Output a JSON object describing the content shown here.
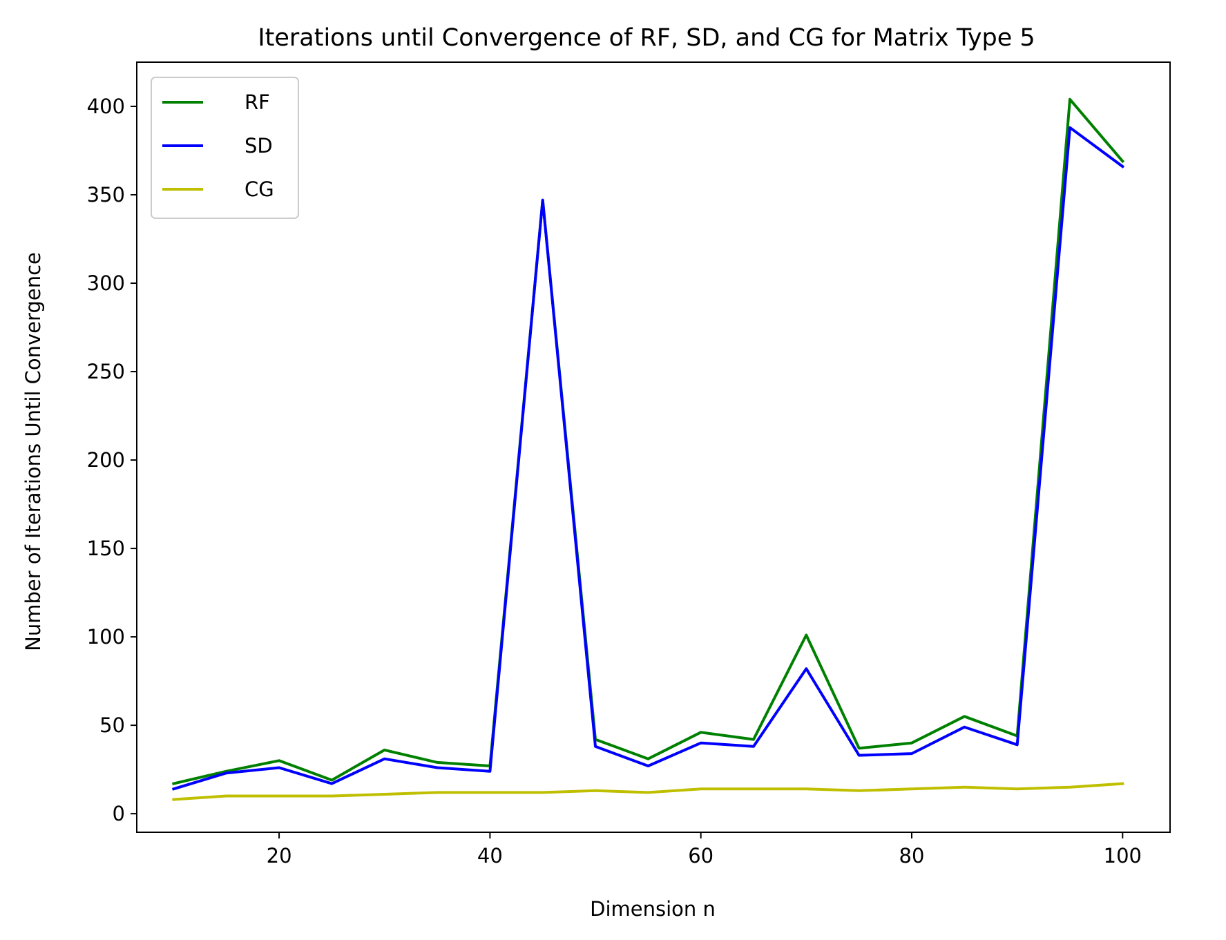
{
  "chart_data": {
    "type": "line",
    "title": "Iterations until Convergence of RF, SD, and CG for Matrix Type 5",
    "xlabel": "Dimension n",
    "ylabel": "Number of Iterations Until Convergence",
    "xlim": [
      6.5,
      104.5
    ],
    "ylim": [
      -10.5,
      425
    ],
    "xticks": [
      20,
      40,
      60,
      80,
      100
    ],
    "yticks": [
      0,
      50,
      100,
      150,
      200,
      250,
      300,
      350,
      400
    ],
    "grid": false,
    "legend_position": "upper-left",
    "x": [
      10,
      15,
      20,
      25,
      30,
      35,
      40,
      45,
      50,
      55,
      60,
      65,
      70,
      75,
      80,
      85,
      90,
      95,
      100
    ],
    "series": [
      {
        "name": "RF",
        "color": "#008000",
        "values": [
          17,
          24,
          30,
          19,
          36,
          29,
          27,
          347,
          42,
          31,
          46,
          42,
          101,
          37,
          40,
          55,
          44,
          404,
          369
        ]
      },
      {
        "name": "SD",
        "color": "#0000ff",
        "values": [
          14,
          23,
          26,
          17,
          31,
          26,
          24,
          347,
          38,
          27,
          40,
          38,
          82,
          33,
          34,
          49,
          39,
          388,
          366
        ]
      },
      {
        "name": "CG",
        "color": "#bfbf00",
        "values": [
          8,
          10,
          10,
          10,
          11,
          12,
          12,
          12,
          13,
          12,
          14,
          14,
          14,
          13,
          14,
          15,
          14,
          15,
          17
        ]
      }
    ]
  }
}
